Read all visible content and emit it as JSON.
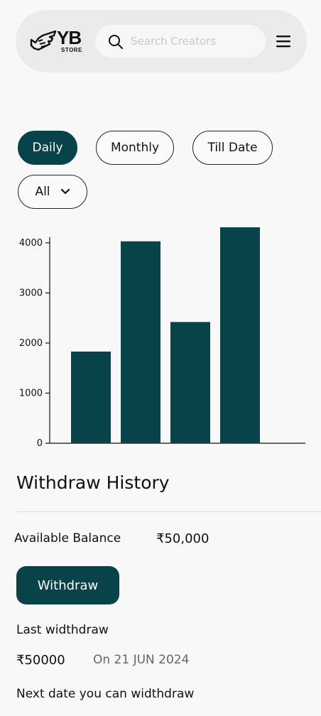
{
  "header": {
    "logo_text": "YB",
    "logo_subtext": "STORE",
    "search_placeholder": "Search Creators",
    "icons": [
      "search-icon",
      "menu-icon",
      "hand-logo-icon"
    ]
  },
  "filters": {
    "tabs": [
      {
        "label": "Daily",
        "active": true
      },
      {
        "label": "Monthly",
        "active": false
      },
      {
        "label": "Till Date",
        "active": false
      }
    ],
    "dropdown_value": "All"
  },
  "chart_data": {
    "type": "bar",
    "categories": [
      "",
      "",
      "",
      ""
    ],
    "values": [
      1830,
      4030,
      2420,
      4310
    ],
    "yticks": [
      0,
      1000,
      2000,
      3000,
      4000
    ],
    "ylim": [
      0,
      4310
    ],
    "title": "",
    "xlabel": "",
    "ylabel": "",
    "grid": false,
    "bar_color": "#08434a"
  },
  "withdraw": {
    "title": "Withdraw History",
    "balance_label": "Available Balance",
    "balance_value": "₹50,000",
    "button_label": "Withdraw",
    "last_label": "Last widthdraw",
    "last_amount": "₹50000",
    "last_date": "On 21 JUN 2024",
    "next_label": "Next date you can widthdraw"
  },
  "colors": {
    "accent": "#08434a",
    "header_bg": "#ebebeb",
    "page_bg": "#f8f8f8"
  }
}
